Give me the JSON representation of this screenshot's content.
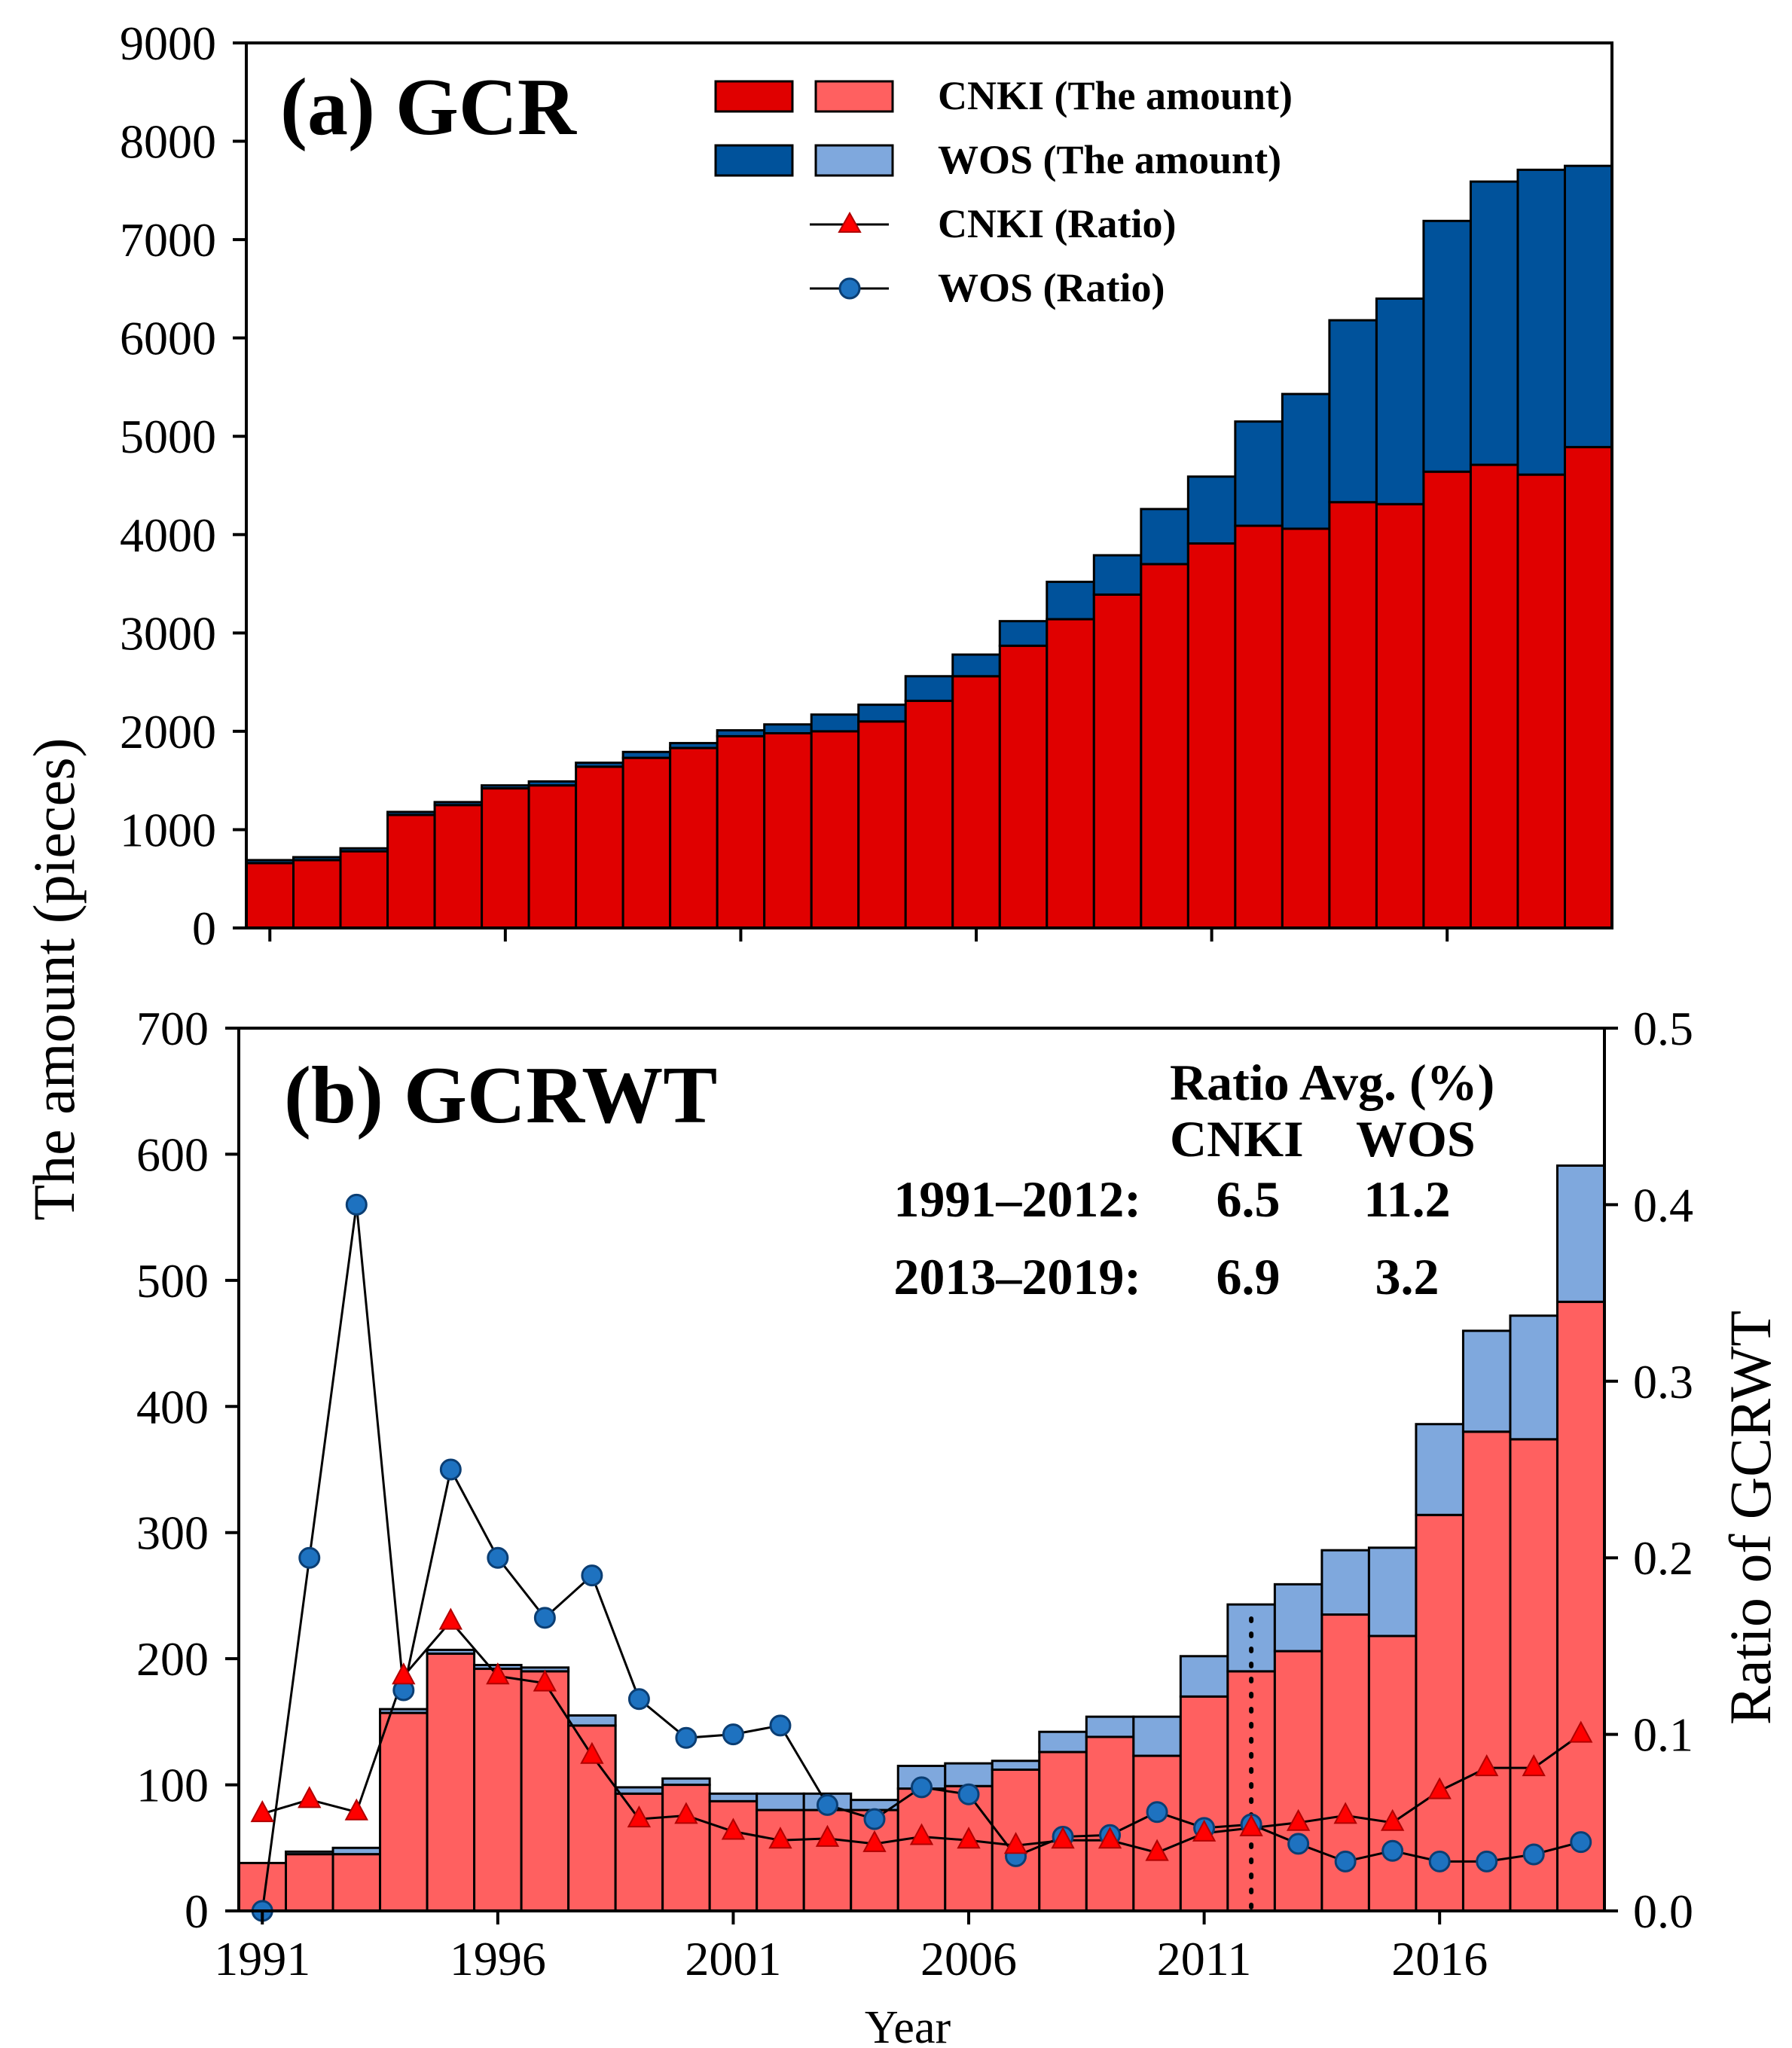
{
  "colors": {
    "cnki_a": "#E00000",
    "wos_a": "#00529B",
    "cnki_b": "#FF6060",
    "wos_b": "#7FA8DD",
    "ratio_cnki_marker": "#FF0000",
    "ratio_wos_marker": "#1E72C0",
    "line": "#000000"
  },
  "legend": {
    "items": [
      {
        "label": "CNKI (The amount)"
      },
      {
        "label": "WOS  (The amount)"
      },
      {
        "label": "CNKI (Ratio)"
      },
      {
        "label": "WOS  (Ratio)"
      }
    ]
  },
  "shared": {
    "ylabel": "The amount (pieces)",
    "xlabel": "Year"
  },
  "avg_table": {
    "title": "Ratio Avg. (%)",
    "col_headers": [
      "CNKI",
      "WOS"
    ],
    "rows": [
      {
        "label": "1991–2012:",
        "cnki": "6.5",
        "wos": "11.2"
      },
      {
        "label": "2013–2019:",
        "cnki": "6.9",
        "wos": "3.2"
      }
    ]
  },
  "chart_data": [
    {
      "id": "gcr",
      "type": "bar",
      "stacked": true,
      "title": "(a) GCR",
      "x": [
        1991,
        1992,
        1993,
        1994,
        1995,
        1996,
        1997,
        1998,
        1999,
        2000,
        2001,
        2002,
        2003,
        2004,
        2005,
        2006,
        2007,
        2008,
        2009,
        2010,
        2011,
        2012,
        2013,
        2014,
        2015,
        2016,
        2017,
        2018,
        2019
      ],
      "series": [
        {
          "name": "CNKI (The amount)",
          "values": [
            660,
            690,
            780,
            1150,
            1250,
            1420,
            1450,
            1640,
            1730,
            1830,
            1950,
            1980,
            2000,
            2100,
            2310,
            2560,
            2870,
            3140,
            3390,
            3700,
            3910,
            4090,
            4060,
            4330,
            4310,
            4640,
            4710,
            4610,
            4890
          ]
        },
        {
          "name": "WOS  (The amount)",
          "values": [
            30,
            30,
            30,
            30,
            30,
            30,
            40,
            40,
            60,
            50,
            60,
            90,
            170,
            170,
            250,
            220,
            250,
            380,
            400,
            560,
            680,
            1060,
            1370,
            1850,
            2090,
            2550,
            2880,
            3100,
            2860
          ]
        }
      ],
      "xlim": [
        1990.5,
        2019.5
      ],
      "ylim": [
        0,
        9000
      ],
      "yticks": [
        0,
        1000,
        2000,
        3000,
        4000,
        5000,
        6000,
        7000,
        8000,
        9000
      ],
      "xticks": [
        1991,
        1996,
        2001,
        2006,
        2011,
        2016
      ]
    },
    {
      "id": "gcrwt",
      "type": "bar",
      "stacked": true,
      "title": "(b) GCRWT",
      "x": [
        1991,
        1992,
        1993,
        1994,
        1995,
        1996,
        1997,
        1998,
        1999,
        2000,
        2001,
        2002,
        2003,
        2004,
        2005,
        2006,
        2007,
        2008,
        2009,
        2010,
        2011,
        2012,
        2013,
        2014,
        2015,
        2016,
        2017,
        2018,
        2019
      ],
      "series": [
        {
          "name": "CNKI (The amount)",
          "values": [
            38,
            45,
            45,
            157,
            204,
            192,
            190,
            147,
            93,
            100,
            87,
            80,
            80,
            80,
            97,
            99,
            112,
            126,
            138,
            123,
            170,
            190,
            206,
            235,
            218,
            314,
            380,
            374,
            483
          ]
        },
        {
          "name": "WOS  (The amount)",
          "values": [
            0,
            2,
            5,
            3,
            3,
            3,
            3,
            8,
            5,
            5,
            6,
            13,
            13,
            8,
            18,
            18,
            7,
            16,
            16,
            31,
            32,
            53,
            53,
            51,
            70,
            72,
            80,
            98,
            108
          ]
        }
      ],
      "ratio_series": [
        {
          "name": "CNKI (Ratio)",
          "values": [
            0.055,
            0.063,
            0.056,
            0.133,
            0.164,
            0.133,
            0.129,
            0.088,
            0.052,
            0.054,
            0.045,
            0.04,
            0.041,
            0.038,
            0.042,
            0.04,
            0.037,
            0.04,
            0.04,
            0.033,
            0.044,
            0.047,
            0.05,
            0.054,
            0.05,
            0.068,
            0.081,
            0.081,
            0.1
          ]
        },
        {
          "name": "WOS  (Ratio)",
          "values": [
            0.0,
            0.2,
            0.4,
            0.125,
            0.25,
            0.2,
            0.166,
            0.19,
            0.12,
            0.098,
            0.1,
            0.105,
            0.06,
            0.052,
            0.07,
            0.066,
            0.031,
            0.042,
            0.043,
            0.056,
            0.047,
            0.049,
            0.038,
            0.028,
            0.034,
            0.028,
            0.028,
            0.032,
            0.039
          ]
        }
      ],
      "divider_after_year": 2012,
      "xlim": [
        1990.5,
        2019.5
      ],
      "ylim": [
        0,
        700
      ],
      "yticks": [
        0,
        100,
        200,
        300,
        400,
        500,
        600,
        700
      ],
      "y2label": "Ratio of GCRWT",
      "y2lim": [
        0,
        0.5
      ],
      "y2ticks": [
        "0.0",
        "0.1",
        "0.2",
        "0.3",
        "0.4",
        "0.5"
      ],
      "xticks": [
        1991,
        1996,
        2001,
        2006,
        2011,
        2016
      ],
      "xlabel": "Year"
    }
  ]
}
